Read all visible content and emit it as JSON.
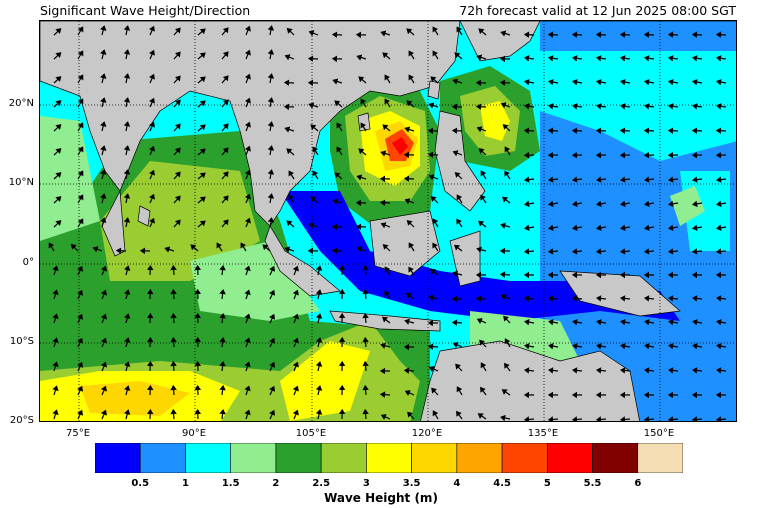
{
  "header": {
    "title": "Significant Wave Height/Direction",
    "valid_time": "72h forecast valid at 12 Jun 2025 08:00 SGT"
  },
  "map": {
    "lat_labels": [
      "20°N",
      "10°N",
      "0°",
      "10°S",
      "20°S"
    ],
    "lon_labels": [
      "75°E",
      "90°E",
      "105°E",
      "120°E",
      "135°E",
      "150°E"
    ],
    "land_color": "#c8c8c8",
    "grid_style": "dotted"
  },
  "colorbar": {
    "title": "Wave Height (m)",
    "tick_labels": [
      "0.5",
      "1",
      "1.5",
      "2",
      "2.5",
      "3",
      "3.5",
      "4",
      "4.5",
      "5",
      "5.5",
      "6"
    ],
    "colors": [
      "#0000ff",
      "#1e90ff",
      "#00ffff",
      "#90ee90",
      "#2ca02c",
      "#9acd32",
      "#ffff00",
      "#ffd700",
      "#ffa500",
      "#ff4500",
      "#ff0000",
      "#800000",
      "#f5deb3"
    ]
  }
}
